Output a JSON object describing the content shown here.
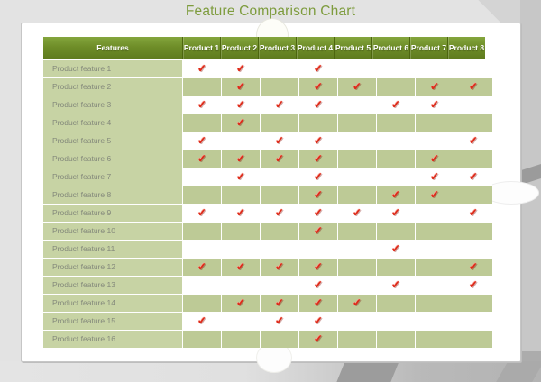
{
  "title": "Feature Comparison Chart",
  "colors": {
    "title_green": "#7e9c3e",
    "header_green_top": "#84a53d",
    "header_green_bottom": "#5e7a1e",
    "feature_cell_green": "#c7d3a4",
    "band_row_green": "#bdca96",
    "check_red": "#dd2b1a",
    "page_gray": "#e3e3e3"
  },
  "icons": {
    "check": "✔"
  },
  "table": {
    "feature_header": "Features",
    "product_headers": [
      "Product 1",
      "Product 2",
      "Product 3",
      "Product 4",
      "Product 5",
      "Product 6",
      "Product 7",
      "Product 8"
    ],
    "rows": [
      {
        "feature": "Product feature 1",
        "checks": [
          1,
          1,
          0,
          1,
          0,
          0,
          0,
          0
        ]
      },
      {
        "feature": "Product feature 2",
        "checks": [
          0,
          1,
          0,
          1,
          1,
          0,
          1,
          1
        ]
      },
      {
        "feature": "Product feature 3",
        "checks": [
          1,
          1,
          1,
          1,
          0,
          1,
          1,
          0
        ]
      },
      {
        "feature": "Product feature 4",
        "checks": [
          0,
          1,
          0,
          0,
          0,
          0,
          0,
          0
        ]
      },
      {
        "feature": "Product feature 5",
        "checks": [
          1,
          0,
          1,
          1,
          0,
          0,
          0,
          1
        ]
      },
      {
        "feature": "Product feature 6",
        "checks": [
          1,
          1,
          1,
          1,
          0,
          0,
          1,
          0
        ]
      },
      {
        "feature": "Product feature 7",
        "checks": [
          0,
          1,
          0,
          1,
          0,
          0,
          1,
          1
        ]
      },
      {
        "feature": "Product feature 8",
        "checks": [
          0,
          0,
          0,
          1,
          0,
          1,
          1,
          0
        ]
      },
      {
        "feature": "Product feature 9",
        "checks": [
          1,
          1,
          1,
          1,
          1,
          1,
          0,
          1
        ]
      },
      {
        "feature": "Product feature 10",
        "checks": [
          0,
          0,
          0,
          1,
          0,
          0,
          0,
          0
        ]
      },
      {
        "feature": "Product feature 11",
        "checks": [
          0,
          0,
          0,
          0,
          0,
          1,
          0,
          0
        ]
      },
      {
        "feature": "Product feature 12",
        "checks": [
          1,
          1,
          1,
          1,
          0,
          0,
          0,
          1
        ]
      },
      {
        "feature": "Product feature 13",
        "checks": [
          0,
          0,
          0,
          1,
          0,
          1,
          0,
          1
        ]
      },
      {
        "feature": "Product feature 14",
        "checks": [
          0,
          1,
          1,
          1,
          1,
          0,
          0,
          0
        ]
      },
      {
        "feature": "Product feature 15",
        "checks": [
          1,
          0,
          1,
          1,
          0,
          0,
          0,
          0
        ]
      },
      {
        "feature": "Product feature 16",
        "checks": [
          0,
          0,
          0,
          1,
          0,
          0,
          0,
          0
        ]
      }
    ]
  },
  "chart_data": {
    "type": "table",
    "title": "Feature Comparison Chart",
    "columns": [
      "Features",
      "Product 1",
      "Product 2",
      "Product 3",
      "Product 4",
      "Product 5",
      "Product 6",
      "Product 7",
      "Product 8"
    ],
    "legend_position": "none",
    "grid": true,
    "rows": [
      [
        "Product feature 1",
        1,
        1,
        0,
        1,
        0,
        0,
        0,
        0
      ],
      [
        "Product feature 2",
        0,
        1,
        0,
        1,
        1,
        0,
        1,
        1
      ],
      [
        "Product feature 3",
        1,
        1,
        1,
        1,
        0,
        1,
        1,
        0
      ],
      [
        "Product feature 4",
        0,
        1,
        0,
        0,
        0,
        0,
        0,
        0
      ],
      [
        "Product feature 5",
        1,
        0,
        1,
        1,
        0,
        0,
        0,
        1
      ],
      [
        "Product feature 6",
        1,
        1,
        1,
        1,
        0,
        0,
        1,
        0
      ],
      [
        "Product feature 7",
        0,
        1,
        0,
        1,
        0,
        0,
        1,
        1
      ],
      [
        "Product feature 8",
        0,
        0,
        0,
        1,
        0,
        1,
        1,
        0
      ],
      [
        "Product feature 9",
        1,
        1,
        1,
        1,
        1,
        1,
        0,
        1
      ],
      [
        "Product feature 10",
        0,
        0,
        0,
        1,
        0,
        0,
        0,
        0
      ],
      [
        "Product feature 11",
        0,
        0,
        0,
        0,
        0,
        1,
        0,
        0
      ],
      [
        "Product feature 12",
        1,
        1,
        1,
        1,
        0,
        0,
        0,
        1
      ],
      [
        "Product feature 13",
        0,
        0,
        0,
        1,
        0,
        1,
        0,
        1
      ],
      [
        "Product feature 14",
        0,
        1,
        1,
        1,
        1,
        0,
        0,
        0
      ],
      [
        "Product feature 15",
        1,
        0,
        1,
        1,
        0,
        0,
        0,
        0
      ],
      [
        "Product feature 16",
        0,
        0,
        0,
        1,
        0,
        0,
        0,
        0
      ]
    ]
  }
}
